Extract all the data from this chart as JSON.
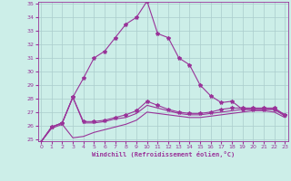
{
  "xlabel": "Windchill (Refroidissement éolien,°C)",
  "x": [
    0,
    1,
    2,
    3,
    4,
    5,
    6,
    7,
    8,
    9,
    10,
    11,
    12,
    13,
    14,
    15,
    16,
    17,
    18,
    19,
    20,
    21,
    22,
    23
  ],
  "line1": [
    24.8,
    25.9,
    26.2,
    28.1,
    29.5,
    31.0,
    31.5,
    32.5,
    33.5,
    34.0,
    35.2,
    32.8,
    32.5,
    31.0,
    30.5,
    29.0,
    28.2,
    27.7,
    27.8,
    27.2,
    27.2,
    27.2,
    27.2,
    26.8
  ],
  "line2": [
    24.8,
    25.9,
    26.2,
    28.1,
    26.3,
    26.3,
    26.4,
    26.6,
    26.8,
    27.1,
    27.8,
    27.5,
    27.2,
    27.0,
    26.9,
    26.9,
    27.0,
    27.2,
    27.3,
    27.3,
    27.3,
    27.3,
    27.3,
    26.8
  ],
  "line3": [
    24.8,
    25.9,
    26.2,
    28.1,
    26.2,
    26.2,
    26.3,
    26.5,
    26.6,
    26.9,
    27.5,
    27.3,
    27.1,
    26.9,
    26.8,
    26.8,
    26.9,
    27.0,
    27.1,
    27.2,
    27.2,
    27.2,
    27.2,
    26.7
  ],
  "line4": [
    24.8,
    25.8,
    26.1,
    25.1,
    25.2,
    25.5,
    25.7,
    25.9,
    26.1,
    26.4,
    27.0,
    26.9,
    26.8,
    26.7,
    26.6,
    26.6,
    26.7,
    26.8,
    26.9,
    27.0,
    27.1,
    27.1,
    27.0,
    26.6
  ],
  "ylim": [
    25,
    35
  ],
  "xlim": [
    0,
    23
  ],
  "yticks": [
    25,
    26,
    27,
    28,
    29,
    30,
    31,
    32,
    33,
    34,
    35
  ],
  "xticks": [
    0,
    1,
    2,
    3,
    4,
    5,
    6,
    7,
    8,
    9,
    10,
    11,
    12,
    13,
    14,
    15,
    16,
    17,
    18,
    19,
    20,
    21,
    22,
    23
  ],
  "line_color": "#993399",
  "bg_color": "#cceee8",
  "grid_color": "#aacccc",
  "marker": "*",
  "markersize": 3,
  "linewidth": 0.8
}
